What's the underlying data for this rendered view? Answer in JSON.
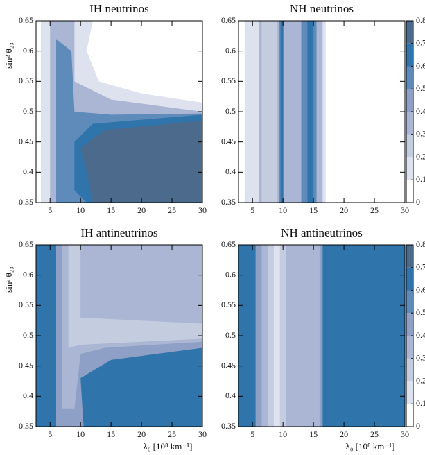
{
  "chart_data": [
    {
      "type": "contour",
      "title": "IH neutrinos",
      "ylabel": "sin² θ₂₃",
      "xlim": [
        2.7,
        30
      ],
      "ylim": [
        0.35,
        0.65
      ],
      "xticks": [
        5,
        10,
        15,
        20,
        25,
        30
      ],
      "yticks": [
        0.35,
        0.4,
        0.45,
        0.5,
        0.55,
        0.6,
        0.65
      ],
      "contours": [
        {
          "level": 0.1,
          "points": [
            [
              3.5,
              0.35
            ],
            [
              3.5,
              0.65
            ],
            [
              12,
              0.65
            ],
            [
              11,
              0.6
            ],
            [
              13,
              0.55
            ],
            [
              20,
              0.53
            ],
            [
              30,
              0.515
            ],
            [
              30,
              0.35
            ]
          ]
        },
        {
          "level": 0.3,
          "points": [
            [
              5,
              0.35
            ],
            [
              5,
              0.65
            ],
            [
              9,
              0.65
            ],
            [
              9,
              0.55
            ],
            [
              15,
              0.52
            ],
            [
              30,
              0.5
            ],
            [
              30,
              0.35
            ]
          ]
        },
        {
          "level": 0.5,
          "points": [
            [
              6,
              0.35
            ],
            [
              6,
              0.62
            ],
            [
              8.5,
              0.6
            ],
            [
              9,
              0.5
            ],
            [
              15,
              0.495
            ],
            [
              30,
              0.497
            ],
            [
              30,
              0.35
            ]
          ]
        },
        {
          "level": 0.6,
          "points": [
            [
              9,
              0.37
            ],
            [
              9,
              0.45
            ],
            [
              12,
              0.48
            ],
            [
              30,
              0.495
            ],
            [
              30,
              0.35
            ],
            [
              11,
              0.35
            ]
          ]
        },
        {
          "level": 0.7,
          "points": [
            [
              10,
              0.44
            ],
            [
              14,
              0.47
            ],
            [
              30,
              0.485
            ],
            [
              30,
              0.35
            ],
            [
              12,
              0.35
            ],
            [
              11,
              0.4
            ]
          ]
        }
      ]
    },
    {
      "type": "contour",
      "title": "NH neutrinos",
      "xlim": [
        2.7,
        30
      ],
      "ylim": [
        0.35,
        0.65
      ],
      "xticks": [
        5,
        10,
        15,
        20,
        25,
        30
      ],
      "yticks": [
        0.35,
        0.4,
        0.45,
        0.5,
        0.55,
        0.6,
        0.65
      ],
      "contours": [
        {
          "level": 0.1,
          "points": [
            [
              3.7,
              0.35
            ],
            [
              3.7,
              0.65
            ],
            [
              17,
              0.65
            ],
            [
              17,
              0.35
            ]
          ]
        },
        {
          "level": 0.3,
          "points": [
            [
              6,
              0.35
            ],
            [
              6,
              0.65
            ],
            [
              16.5,
              0.65
            ],
            [
              16.5,
              0.35
            ]
          ]
        },
        {
          "level": 0.2,
          "points": [
            [
              6.5,
              0.35
            ],
            [
              6.5,
              0.65
            ],
            [
              9,
              0.65
            ],
            [
              9,
              0.35
            ]
          ]
        },
        {
          "level": 0.5,
          "points": [
            [
              9.3,
              0.35
            ],
            [
              9.3,
              0.65
            ],
            [
              10.2,
              0.65
            ],
            [
              10.2,
              0.35
            ]
          ]
        },
        {
          "level": 0.6,
          "points": [
            [
              9.6,
              0.35
            ],
            [
              9.6,
              0.65
            ],
            [
              10,
              0.65
            ],
            [
              10,
              0.35
            ]
          ]
        },
        {
          "level": 0.5,
          "points": [
            [
              13,
              0.35
            ],
            [
              13,
              0.65
            ],
            [
              15.5,
              0.65
            ],
            [
              15.5,
              0.35
            ]
          ]
        },
        {
          "level": 0.6,
          "points": [
            [
              14,
              0.35
            ],
            [
              14,
              0.65
            ],
            [
              15,
              0.65
            ],
            [
              15,
              0.35
            ]
          ]
        }
      ],
      "colorbar": {
        "levels": [
          0,
          0.1,
          0.2,
          0.3,
          0.4,
          0.5,
          0.6,
          0.7,
          0.8
        ],
        "colors": [
          "#ffffff",
          "#dde2ee",
          "#c4cce0",
          "#aab6d3",
          "#8fa0c6",
          "#5f8bbb",
          "#2f74aa",
          "#4b6a8c"
        ]
      }
    },
    {
      "type": "contour",
      "title": "IH antineutrinos",
      "xlabel": "λ₀ [10⁸ km⁻¹]",
      "ylabel": "sin² θ₂₃",
      "xlim": [
        2.7,
        30
      ],
      "ylim": [
        0.35,
        0.65
      ],
      "xticks": [
        5,
        10,
        15,
        20,
        25,
        30
      ],
      "yticks": [
        0.35,
        0.4,
        0.45,
        0.5,
        0.55,
        0.6,
        0.65
      ],
      "contours": [
        {
          "level": 0.6,
          "points": [
            [
              2.7,
              0.35
            ],
            [
              2.7,
              0.65
            ],
            [
              30,
              0.65
            ],
            [
              30,
              0.35
            ]
          ]
        },
        {
          "level": 0.4,
          "points": [
            [
              6,
              0.35
            ],
            [
              6,
              0.65
            ],
            [
              30,
              0.65
            ],
            [
              30,
              0.48
            ],
            [
              15,
              0.46
            ],
            [
              10,
              0.43
            ],
            [
              10.5,
              0.35
            ]
          ]
        },
        {
          "level": 0.3,
          "points": [
            [
              7,
              0.38
            ],
            [
              7,
              0.65
            ],
            [
              30,
              0.65
            ],
            [
              30,
              0.49
            ],
            [
              14,
              0.48
            ],
            [
              10,
              0.47
            ],
            [
              9,
              0.38
            ]
          ]
        },
        {
          "level": 0.2,
          "points": [
            [
              8,
              0.48
            ],
            [
              8,
              0.65
            ],
            [
              10,
              0.65
            ],
            [
              10,
              0.53
            ],
            [
              30,
              0.52
            ],
            [
              30,
              0.495
            ],
            [
              10,
              0.485
            ]
          ]
        }
      ]
    },
    {
      "type": "contour",
      "title": "NH antineutrinos",
      "xlabel": "λ₀ [10⁸ km⁻¹]",
      "xlim": [
        2.7,
        30
      ],
      "ylim": [
        0.35,
        0.65
      ],
      "xticks": [
        5,
        10,
        15,
        20,
        25,
        30
      ],
      "yticks": [
        0.35,
        0.4,
        0.45,
        0.5,
        0.55,
        0.6,
        0.65
      ],
      "contours": [
        {
          "level": 0.6,
          "points": [
            [
              2.7,
              0.35
            ],
            [
              2.7,
              0.65
            ],
            [
              30,
              0.65
            ],
            [
              30,
              0.35
            ]
          ]
        },
        {
          "level": 0.4,
          "points": [
            [
              5.5,
              0.35
            ],
            [
              5.5,
              0.65
            ],
            [
              16.5,
              0.65
            ],
            [
              16.5,
              0.35
            ]
          ]
        },
        {
          "level": 0.3,
          "points": [
            [
              6.5,
              0.35
            ],
            [
              6.5,
              0.65
            ],
            [
              16,
              0.65
            ],
            [
              16,
              0.35
            ]
          ]
        },
        {
          "level": 0.2,
          "points": [
            [
              7.5,
              0.35
            ],
            [
              7.5,
              0.65
            ],
            [
              10.5,
              0.65
            ],
            [
              10.5,
              0.35
            ]
          ]
        },
        {
          "level": 0.1,
          "points": [
            [
              8.5,
              0.35
            ],
            [
              8.5,
              0.65
            ],
            [
              9.5,
              0.65
            ],
            [
              9.5,
              0.35
            ]
          ]
        }
      ],
      "colorbar": {
        "levels": [
          0,
          0.1,
          0.2,
          0.3,
          0.4,
          0.5,
          0.6,
          0.7,
          0.8
        ],
        "colors": [
          "#ffffff",
          "#dde2ee",
          "#c4cce0",
          "#aab6d3",
          "#8fa0c6",
          "#5f8bbb",
          "#2f74aa",
          "#4b6a8c"
        ]
      }
    }
  ]
}
